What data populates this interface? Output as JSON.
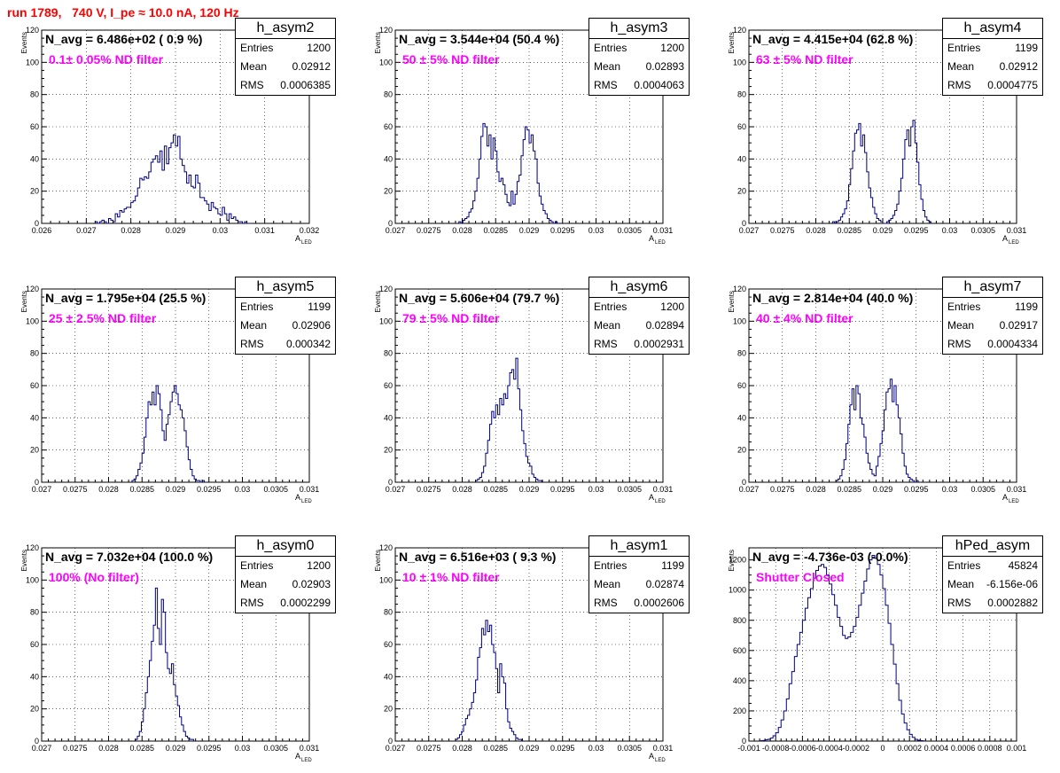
{
  "run_title": "run 1789,   740 V, I_pe ≈ 10.0 nA, 120 Hz",
  "stats_labels": {
    "entries": "Entries",
    "mean": "Mean",
    "rms": "RMS"
  },
  "chart_data": [
    {
      "type": "bar",
      "name": "h_asym2",
      "navg": "N_avg = 6.486e+02 ( 0.9 %)",
      "filter": "0.1± 0.05% ND filter",
      "entries": "1200",
      "mean": "0.02912",
      "rms": "0.0006385",
      "xlabel": "A",
      "xlabel_sub": "LED",
      "ylabel": "Events",
      "xlim": [
        0.026,
        0.032
      ],
      "ylim": [
        0,
        120
      ],
      "xticks": [
        0.026,
        0.027,
        0.028,
        0.029,
        0.03,
        0.031,
        0.032
      ],
      "xtick_labels": [
        "0.026",
        "0.027",
        "0.028",
        "0.029",
        "0.03",
        "0.031",
        "0.032"
      ],
      "yticks": [
        0,
        20,
        40,
        60,
        80,
        100,
        120
      ],
      "bin_start": 0.0272,
      "bin_width": 5e-05,
      "values": [
        1,
        0,
        1,
        2,
        1,
        0,
        3,
        2,
        1,
        6,
        4,
        8,
        7,
        9,
        10,
        10,
        13,
        14,
        17,
        22,
        28,
        27,
        29,
        28,
        32,
        38,
        40,
        42,
        38,
        45,
        33,
        48,
        37,
        47,
        50,
        55,
        48,
        54,
        40,
        36,
        32,
        25,
        30,
        23,
        22,
        30,
        25,
        16,
        16,
        14,
        12,
        8,
        13,
        10,
        9,
        6,
        5,
        10,
        6,
        2,
        6,
        3,
        4,
        2,
        1,
        1,
        0,
        1,
        0,
        0
      ]
    },
    {
      "type": "bar",
      "name": "h_asym3",
      "navg": "N_avg = 3.544e+04 (50.4 %)",
      "filter": "50 ± 5% ND filter",
      "entries": "1200",
      "mean": "0.02893",
      "rms": "0.0004063",
      "xlabel": "A",
      "xlabel_sub": "LED",
      "ylabel": "Events",
      "xlim": [
        0.027,
        0.031
      ],
      "ylim": [
        0,
        120
      ],
      "xticks": [
        0.027,
        0.0275,
        0.028,
        0.0285,
        0.029,
        0.0295,
        0.03,
        0.0305,
        0.031
      ],
      "xtick_labels": [
        "0.027",
        "0.0275",
        "0.028",
        "0.0285",
        "0.029",
        "0.0295",
        "0.03",
        "0.0305",
        "0.031"
      ],
      "yticks": [
        0,
        20,
        40,
        60,
        80,
        100,
        120
      ],
      "bin_start": 0.02795,
      "bin_width": 3e-05,
      "values": [
        1,
        0,
        2,
        3,
        4,
        7,
        9,
        14,
        20,
        28,
        40,
        54,
        62,
        60,
        48,
        55,
        40,
        53,
        45,
        32,
        26,
        28,
        24,
        18,
        13,
        11,
        20,
        12,
        18,
        26,
        30,
        42,
        52,
        60,
        58,
        50,
        55,
        45,
        40,
        25,
        17,
        12,
        8,
        6,
        3,
        2,
        1,
        0,
        1
      ]
    },
    {
      "type": "bar",
      "name": "h_asym4",
      "navg": "N_avg = 4.415e+04 (62.8 %)",
      "filter": "63 ± 5% ND filter",
      "entries": "1199",
      "mean": "0.02912",
      "rms": "0.0004775",
      "xlabel": "A",
      "xlabel_sub": "LED",
      "ylabel": "Events",
      "xlim": [
        0.027,
        0.031
      ],
      "ylim": [
        0,
        120
      ],
      "xticks": [
        0.027,
        0.0275,
        0.028,
        0.0285,
        0.029,
        0.0295,
        0.03,
        0.0305,
        0.031
      ],
      "xtick_labels": [
        "0.027",
        "0.0275",
        "0.028",
        "0.0285",
        "0.029",
        "0.0295",
        "0.03",
        "0.0305",
        "0.031"
      ],
      "yticks": [
        0,
        20,
        40,
        60,
        80,
        100,
        120
      ],
      "bin_start": 0.02825,
      "bin_width": 3e-05,
      "values": [
        1,
        0,
        1,
        2,
        4,
        6,
        9,
        14,
        24,
        34,
        45,
        56,
        58,
        62,
        48,
        55,
        44,
        32,
        22,
        16,
        10,
        6,
        3,
        2,
        1,
        0,
        0,
        1,
        2,
        3,
        5,
        8,
        12,
        20,
        28,
        40,
        52,
        58,
        48,
        60,
        64,
        50,
        38,
        24,
        15,
        8,
        4,
        2,
        1
      ]
    },
    {
      "type": "bar",
      "name": "h_asym5",
      "navg": "N_avg = 1.795e+04 (25.5 %)",
      "filter": "25 ± 2.5% ND filter",
      "entries": "1199",
      "mean": "0.02906",
      "rms": "0.000342",
      "xlabel": "A",
      "xlabel_sub": "LED",
      "ylabel": "Events",
      "xlim": [
        0.027,
        0.031
      ],
      "ylim": [
        0,
        120
      ],
      "xticks": [
        0.027,
        0.0275,
        0.028,
        0.0285,
        0.029,
        0.0295,
        0.03,
        0.0305,
        0.031
      ],
      "xtick_labels": [
        "0.027",
        "0.0275",
        "0.028",
        "0.0285",
        "0.029",
        "0.0295",
        "0.03",
        "0.0305",
        "0.031"
      ],
      "yticks": [
        0,
        20,
        40,
        60,
        80,
        100,
        120
      ],
      "bin_start": 0.02835,
      "bin_width": 3e-05,
      "values": [
        1,
        2,
        4,
        8,
        12,
        18,
        28,
        40,
        50,
        48,
        56,
        48,
        60,
        55,
        45,
        32,
        26,
        36,
        42,
        50,
        56,
        60,
        55,
        48,
        45,
        40,
        32,
        22,
        14,
        8,
        4,
        2,
        1,
        1,
        0,
        1
      ]
    },
    {
      "type": "bar",
      "name": "h_asym6",
      "navg": "N_avg = 5.606e+04 (79.7 %)",
      "filter": "79 ± 5% ND filter",
      "entries": "1200",
      "mean": "0.02894",
      "rms": "0.0002931",
      "xlabel": "A",
      "xlabel_sub": "LED",
      "ylabel": "Events",
      "xlim": [
        0.027,
        0.031
      ],
      "ylim": [
        0,
        120
      ],
      "xticks": [
        0.027,
        0.0275,
        0.028,
        0.0285,
        0.029,
        0.0295,
        0.03,
        0.0305,
        0.031
      ],
      "xtick_labels": [
        "0.027",
        "0.0275",
        "0.028",
        "0.0285",
        "0.029",
        "0.0295",
        "0.03",
        "0.0305",
        "0.031"
      ],
      "yticks": [
        0,
        20,
        40,
        60,
        80,
        100,
        120
      ],
      "bin_start": 0.0282,
      "bin_width": 3e-05,
      "values": [
        1,
        2,
        3,
        6,
        10,
        18,
        26,
        36,
        44,
        40,
        48,
        42,
        52,
        48,
        55,
        52,
        60,
        68,
        70,
        64,
        77,
        58,
        45,
        32,
        24,
        16,
        12,
        10,
        5,
        3,
        2,
        1,
        1
      ]
    },
    {
      "type": "bar",
      "name": "h_asym7",
      "navg": "N_avg = 2.814e+04 (40.0 %)",
      "filter": "40 ± 4% ND filter",
      "entries": "1199",
      "mean": "0.02917",
      "rms": "0.0004334",
      "xlabel": "A",
      "xlabel_sub": "LED",
      "ylabel": "Events",
      "xlim": [
        0.027,
        0.031
      ],
      "ylim": [
        0,
        120
      ],
      "xticks": [
        0.027,
        0.0275,
        0.028,
        0.0285,
        0.029,
        0.0295,
        0.03,
        0.0305,
        0.031
      ],
      "xtick_labels": [
        "0.027",
        "0.0275",
        "0.028",
        "0.0285",
        "0.029",
        "0.0295",
        "0.03",
        "0.0305",
        "0.031"
      ],
      "yticks": [
        0,
        20,
        40,
        60,
        80,
        100,
        120
      ],
      "bin_start": 0.0283,
      "bin_width": 3e-05,
      "values": [
        1,
        2,
        4,
        8,
        14,
        24,
        36,
        48,
        58,
        45,
        60,
        55,
        40,
        36,
        28,
        18,
        12,
        8,
        5,
        4,
        10,
        16,
        24,
        32,
        45,
        56,
        58,
        64,
        50,
        60,
        48,
        40,
        30,
        18,
        10,
        5,
        3,
        2,
        1,
        0,
        1
      ]
    },
    {
      "type": "bar",
      "name": "h_asym0",
      "navg": "N_avg = 7.032e+04 (100.0 %)",
      "filter": "100% (No filter)",
      "entries": "1200",
      "mean": "0.02903",
      "rms": "0.0002299",
      "xlabel": "A",
      "xlabel_sub": "LED",
      "ylabel": "Events",
      "xlim": [
        0.027,
        0.031
      ],
      "ylim": [
        0,
        120
      ],
      "xticks": [
        0.027,
        0.0275,
        0.028,
        0.0285,
        0.029,
        0.0295,
        0.03,
        0.0305,
        0.031
      ],
      "xtick_labels": [
        "0.027",
        "0.0275",
        "0.028",
        "0.0285",
        "0.029",
        "0.0295",
        "0.03",
        "0.0305",
        "0.031"
      ],
      "yticks": [
        0,
        20,
        40,
        60,
        80,
        100,
        120
      ],
      "bin_start": 0.0284,
      "bin_width": 3e-05,
      "values": [
        1,
        3,
        6,
        12,
        20,
        30,
        40,
        50,
        62,
        72,
        95,
        70,
        60,
        88,
        80,
        55,
        45,
        42,
        48,
        35,
        28,
        22,
        15,
        10,
        6,
        3,
        2,
        1,
        1
      ]
    },
    {
      "type": "bar",
      "name": "h_asym1",
      "navg": "N_avg = 6.516e+03 ( 9.3 %)",
      "filter": "10 ± 1% ND filter",
      "entries": "1199",
      "mean": "0.02874",
      "rms": "0.0002606",
      "xlabel": "A",
      "xlabel_sub": "LED",
      "ylabel": "Events",
      "xlim": [
        0.027,
        0.031
      ],
      "ylim": [
        0,
        120
      ],
      "xticks": [
        0.027,
        0.0275,
        0.028,
        0.0285,
        0.029,
        0.0295,
        0.03,
        0.0305,
        0.031
      ],
      "xtick_labels": [
        "0.027",
        "0.0275",
        "0.028",
        "0.0285",
        "0.029",
        "0.0295",
        "0.03",
        "0.0305",
        "0.031"
      ],
      "yticks": [
        0,
        20,
        40,
        60,
        80,
        100,
        120
      ],
      "bin_start": 0.0279,
      "bin_width": 3e-05,
      "values": [
        1,
        2,
        4,
        6,
        10,
        14,
        16,
        20,
        24,
        30,
        38,
        52,
        58,
        70,
        66,
        75,
        68,
        72,
        60,
        55,
        45,
        30,
        48,
        40,
        36,
        20,
        12,
        8,
        6,
        4,
        2,
        1,
        1
      ]
    },
    {
      "type": "bar",
      "name": "hPed_asym",
      "navg": "N_avg = -4.736e-03 (-0.0%)",
      "filter": "Shutter Closed",
      "entries": "45824",
      "mean": "-6.156e-06",
      "rms": "0.0002882",
      "xlabel": "",
      "xlabel_sub": "",
      "ylabel": "Events",
      "xlim": [
        -0.001,
        0.001
      ],
      "ylim": [
        0,
        1280
      ],
      "xticks": [
        -0.001,
        -0.0008,
        -0.0006,
        -0.0004,
        -0.0002,
        0,
        0.0002,
        0.0004,
        0.0006,
        0.0008,
        0.001
      ],
      "xtick_labels": [
        "-0.001",
        "-0.0008",
        "-0.0006",
        "-0.0004",
        "-0.0002",
        "0",
        "0.0002",
        "0.0004",
        "0.0006",
        "0.0008",
        "0.001"
      ],
      "yticks": [
        0,
        200,
        400,
        600,
        800,
        1000,
        1200
      ],
      "bin_start": -0.00092,
      "bin_width": 2e-05,
      "values": [
        2,
        4,
        8,
        12,
        20,
        35,
        55,
        90,
        140,
        200,
        280,
        380,
        460,
        560,
        640,
        720,
        800,
        880,
        950,
        1010,
        1080,
        1130,
        1160,
        1170,
        1150,
        1100,
        1040,
        970,
        900,
        820,
        760,
        700,
        680,
        690,
        720,
        760,
        820,
        900,
        980,
        1060,
        1140,
        1200,
        1230,
        1210,
        1170,
        1100,
        1010,
        900,
        780,
        640,
        510,
        380,
        270,
        180,
        120,
        75,
        45,
        25,
        12,
        6,
        3,
        1
      ]
    }
  ]
}
